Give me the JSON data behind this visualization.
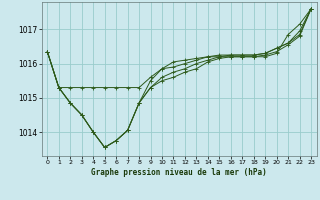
{
  "background_color": "#cce8ed",
  "grid_color": "#99cccc",
  "line_color": "#2d5a1b",
  "xlabel": "Graphe pression niveau de la mer (hPa)",
  "xlim": [
    -0.5,
    23.5
  ],
  "ylim": [
    1013.3,
    1017.8
  ],
  "yticks": [
    1014,
    1015,
    1016,
    1017
  ],
  "xticks": [
    0,
    1,
    2,
    3,
    4,
    5,
    6,
    7,
    8,
    9,
    10,
    11,
    12,
    13,
    14,
    15,
    16,
    17,
    18,
    19,
    20,
    21,
    22,
    23
  ],
  "series": [
    [
      1016.35,
      1015.3,
      1015.3,
      1015.3,
      1015.3,
      1015.3,
      1015.3,
      1015.3,
      1015.3,
      1015.6,
      1015.85,
      1016.05,
      1016.1,
      1016.15,
      1016.2,
      1016.2,
      1016.2,
      1016.2,
      1016.2,
      1016.2,
      1016.3,
      1016.85,
      1017.15,
      1017.6
    ],
    [
      1016.35,
      1015.3,
      1014.85,
      1014.5,
      1014.0,
      1013.55,
      1013.75,
      1014.05,
      1014.85,
      1015.3,
      1015.5,
      1015.6,
      1015.75,
      1015.85,
      1016.05,
      1016.15,
      1016.2,
      1016.2,
      1016.2,
      1016.25,
      1016.35,
      1016.55,
      1016.8,
      1017.6
    ],
    [
      1016.35,
      1015.3,
      1014.85,
      1014.5,
      1014.0,
      1013.55,
      1013.75,
      1014.05,
      1014.85,
      1015.3,
      1015.6,
      1015.75,
      1015.85,
      1016.0,
      1016.1,
      1016.2,
      1016.25,
      1016.25,
      1016.25,
      1016.3,
      1016.45,
      1016.6,
      1016.95,
      1017.6
    ],
    [
      1016.35,
      1015.3,
      1014.85,
      1014.5,
      1014.0,
      1013.55,
      1013.75,
      1014.05,
      1014.85,
      1015.5,
      1015.85,
      1015.9,
      1016.0,
      1016.1,
      1016.2,
      1016.25,
      1016.25,
      1016.25,
      1016.25,
      1016.3,
      1016.45,
      1016.6,
      1016.85,
      1017.6
    ]
  ]
}
